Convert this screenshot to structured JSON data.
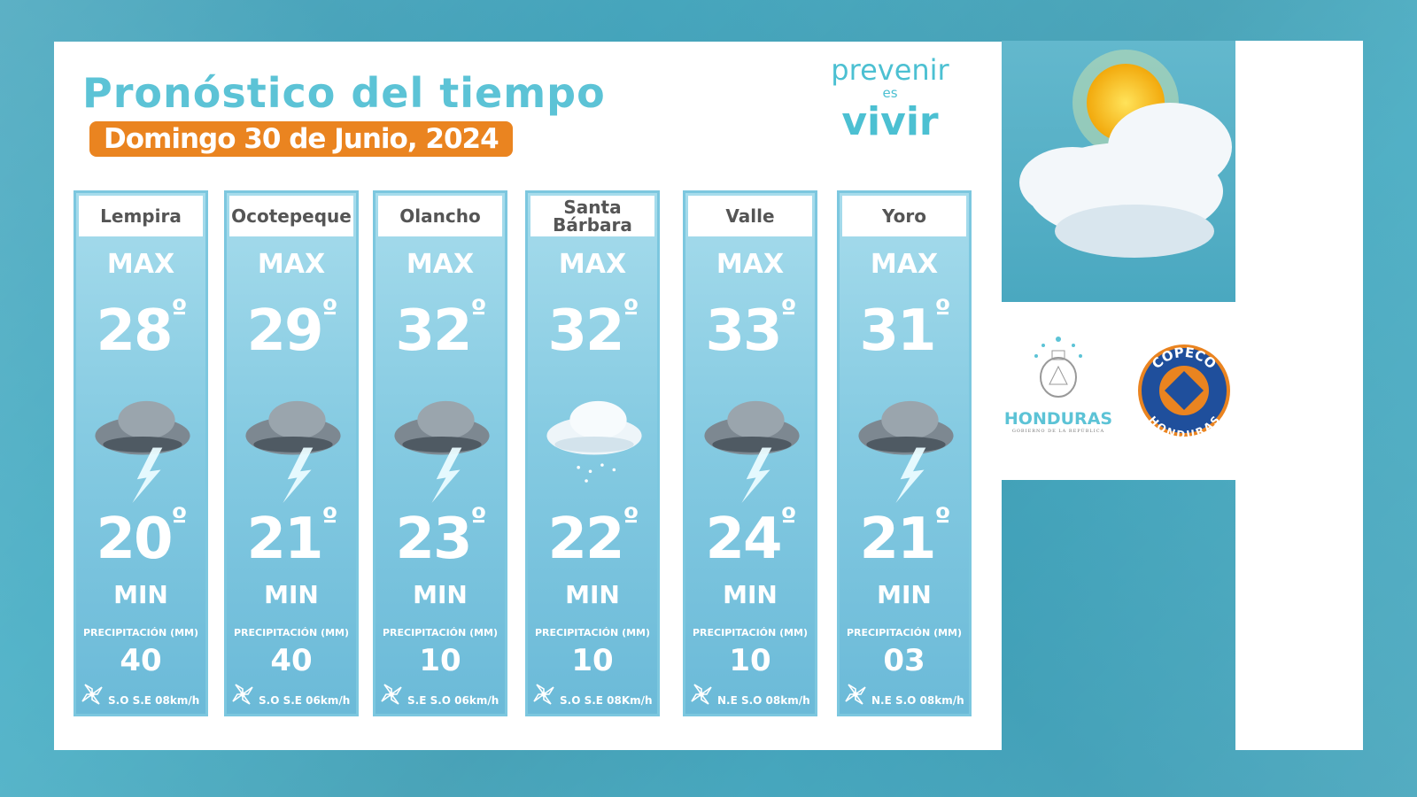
{
  "header": {
    "title": "Pronóstico del tiempo",
    "date": "Domingo 30 de Junio, 2024"
  },
  "logo": {
    "line1": "prevenir",
    "line2": "es",
    "line3": "vivir"
  },
  "labels": {
    "max": "MAX",
    "min": "MIN",
    "precip": "PRECIPITACIÓN (MM)",
    "degree": "º"
  },
  "cards": [
    {
      "name": "Lempira",
      "max": "28",
      "min": "20",
      "precip": "40",
      "wind": "S.O S.E 08km/h",
      "icon": "storm-icon"
    },
    {
      "name": "Ocotepeque",
      "max": "29",
      "min": "21",
      "precip": "40",
      "wind": "S.O S.E 06km/h",
      "icon": "storm-icon"
    },
    {
      "name": "Olancho",
      "max": "32",
      "min": "23",
      "precip": "10",
      "wind": "S.E S.O 06km/h",
      "icon": "storm-icon"
    },
    {
      "name": "Santa Bárbara",
      "max": "32",
      "min": "22",
      "precip": "10",
      "wind": "S.O S.E 08Km/h",
      "icon": "rain-cloud-icon"
    },
    {
      "name": "Valle",
      "max": "33",
      "min": "24",
      "precip": "10",
      "wind": "N.E S.O 08km/h",
      "icon": "storm-icon"
    },
    {
      "name": "Yoro",
      "max": "31",
      "min": "21",
      "precip": "03",
      "wind": "N.E S.O 08km/h",
      "icon": "storm-icon"
    }
  ],
  "partners": {
    "honduras": "HONDURAS",
    "gobierno": "GOBIERNO DE LA REPÚBLICA",
    "copeco_top": "COPECO",
    "copeco_bottom": "HONDURAS"
  },
  "colors": {
    "accent": "#5cc3d6",
    "orange": "#ea8420",
    "card": "#86cbe2",
    "copeco_blue": "#1f4f9c"
  }
}
